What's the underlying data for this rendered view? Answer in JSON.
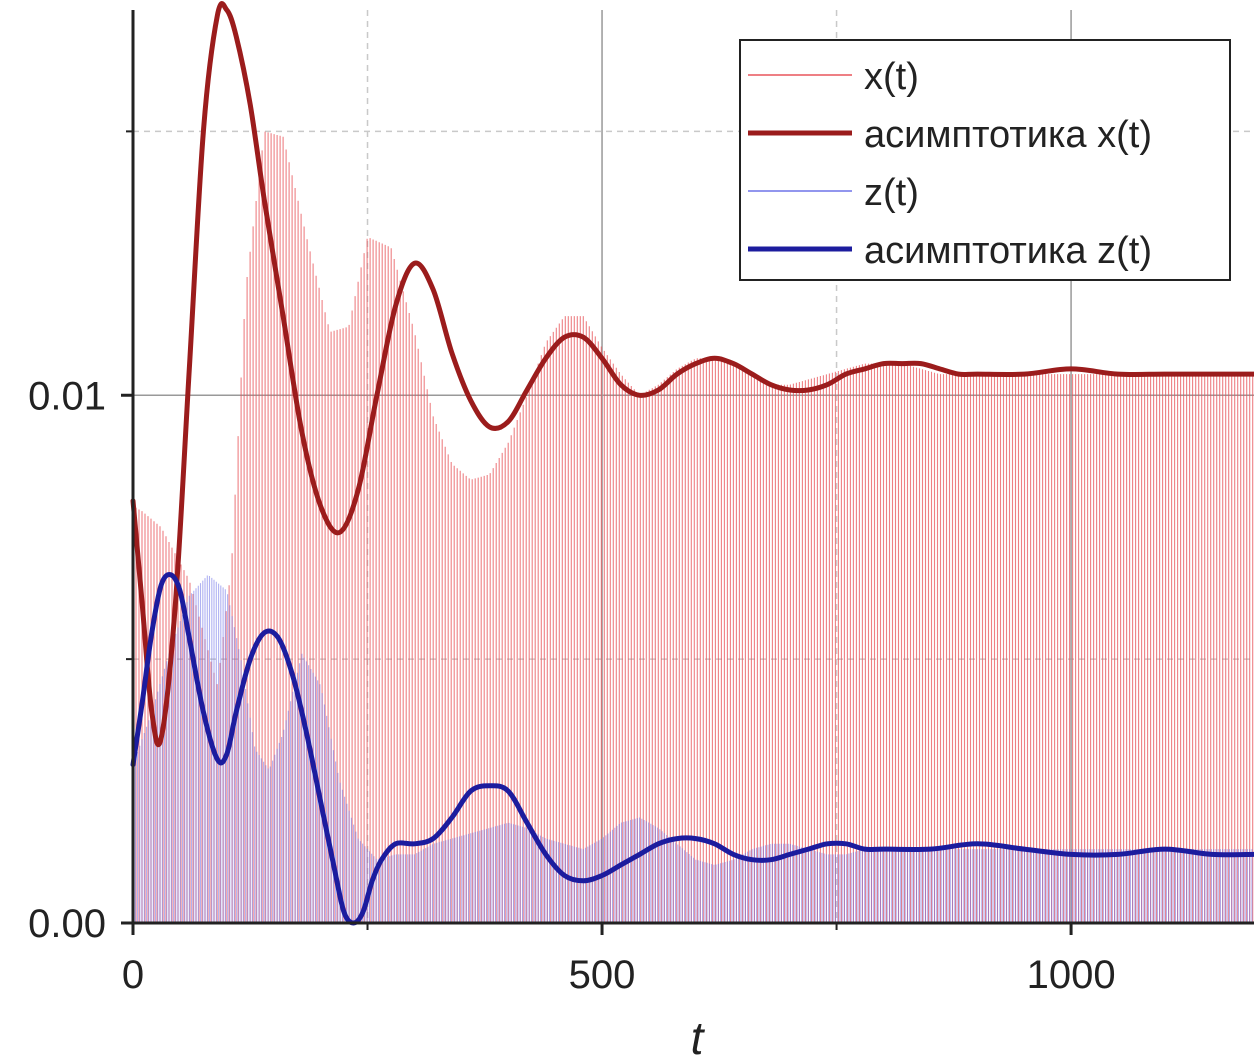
{
  "chart_data": {
    "type": "line",
    "title": "",
    "xlabel": "t",
    "ylabel": "",
    "xlim": [
      0,
      1195
    ],
    "ylim": [
      0,
      0.0173
    ],
    "x_ticks": [
      0,
      500,
      1000
    ],
    "x_tick_labels": [
      "0",
      "500",
      "1000"
    ],
    "y_ticks": [
      0.0,
      0.01
    ],
    "y_tick_labels": [
      "0.00",
      "0.01"
    ],
    "grid": {
      "x_solid": [
        500,
        1000
      ],
      "x_dashed": [
        250,
        750
      ],
      "y_solid": [
        0.01
      ],
      "y_dashed": [
        0.005,
        0.015
      ]
    },
    "legend": {
      "placement": "top-right",
      "entries": [
        {
          "label": "x(t)",
          "color": "#e8555b",
          "style": "thin"
        },
        {
          "label": "асимптотика x(t)",
          "color": "#9b1c1c",
          "style": "thick"
        },
        {
          "label": "z(t)",
          "color": "#6f73e8",
          "style": "thin"
        },
        {
          "label": "асимптотика z(t)",
          "color": "#1c1c9e",
          "style": "thick"
        }
      ]
    },
    "series": [
      {
        "name": "x(t)",
        "kind": "oscillation-envelope",
        "color": "#e8555b",
        "x": [
          0,
          10,
          30,
          60,
          90,
          105,
          120,
          140,
          160,
          185,
          210,
          230,
          250,
          275,
          300,
          320,
          340,
          360,
          380,
          400,
          420,
          440,
          460,
          480,
          500,
          520,
          540,
          560,
          580,
          600,
          620,
          640,
          660,
          680,
          700,
          720,
          740,
          760,
          780,
          800,
          820,
          840,
          860,
          880,
          900,
          950,
          1000,
          1050,
          1100,
          1150,
          1195
        ],
        "upper": [
          0.0079,
          0.0078,
          0.0075,
          0.0065,
          0.0045,
          0.0068,
          0.012,
          0.015,
          0.0149,
          0.013,
          0.0112,
          0.0113,
          0.013,
          0.0128,
          0.0112,
          0.0096,
          0.0087,
          0.0084,
          0.0085,
          0.0091,
          0.01,
          0.011,
          0.0115,
          0.0115,
          0.0109,
          0.0104,
          0.01,
          0.0102,
          0.0105,
          0.0107,
          0.0107,
          0.0106,
          0.0104,
          0.0102,
          0.0102,
          0.0103,
          0.0104,
          0.0105,
          0.0106,
          0.0106,
          0.0106,
          0.0105,
          0.0104,
          0.0104,
          0.0104,
          0.0104,
          0.0104,
          0.0104,
          0.0104,
          0.0104,
          0.0104
        ],
        "lower": [
          0.0,
          0.0,
          0.0,
          0.0,
          0.0,
          0.0,
          0.0,
          0.0,
          0.0,
          0.0,
          0.0,
          0.0,
          0.0,
          0.0,
          0.0,
          0.0,
          0.0,
          0.0,
          0.0,
          0.0,
          0.0,
          0.0,
          0.0,
          0.0,
          0.0,
          0.0,
          0.0,
          0.0,
          0.0,
          0.0,
          0.0,
          0.0,
          0.0,
          0.0,
          0.0,
          0.0,
          0.0,
          0.0,
          0.0,
          0.0,
          0.0,
          0.0,
          0.0,
          0.0,
          0.0,
          0.0,
          0.0,
          0.0,
          0.0,
          0.0,
          0.0
        ]
      },
      {
        "name": "асимптотика x(t)",
        "kind": "line",
        "color": "#9b1c1c",
        "x": [
          0,
          10,
          20,
          30,
          45,
          60,
          75,
          90,
          100,
          110,
          125,
          140,
          160,
          180,
          200,
          220,
          240,
          260,
          280,
          300,
          320,
          340,
          360,
          380,
          400,
          420,
          440,
          460,
          480,
          500,
          520,
          540,
          560,
          580,
          600,
          620,
          640,
          660,
          680,
          700,
          720,
          740,
          760,
          780,
          800,
          820,
          840,
          860,
          880,
          900,
          950,
          1000,
          1050,
          1100,
          1150,
          1195
        ],
        "y": [
          0.008,
          0.006,
          0.004,
          0.0035,
          0.006,
          0.0105,
          0.015,
          0.0172,
          0.0173,
          0.0168,
          0.0155,
          0.0137,
          0.0115,
          0.0093,
          0.0079,
          0.0074,
          0.0082,
          0.01,
          0.0117,
          0.0125,
          0.012,
          0.0108,
          0.0099,
          0.0094,
          0.0095,
          0.0101,
          0.0107,
          0.0111,
          0.0111,
          0.0107,
          0.0102,
          0.01,
          0.0101,
          0.0104,
          0.0106,
          0.0107,
          0.0106,
          0.0104,
          0.0102,
          0.0101,
          0.0101,
          0.0102,
          0.0104,
          0.0105,
          0.0106,
          0.0106,
          0.0106,
          0.0105,
          0.0104,
          0.0104,
          0.0104,
          0.0105,
          0.0104,
          0.0104,
          0.0104,
          0.0104
        ]
      },
      {
        "name": "z(t)",
        "kind": "oscillation-envelope",
        "color": "#6f73e8",
        "x": [
          0,
          20,
          40,
          60,
          80,
          100,
          115,
          130,
          145,
          160,
          180,
          200,
          220,
          240,
          260,
          280,
          300,
          320,
          340,
          360,
          380,
          400,
          420,
          440,
          460,
          480,
          500,
          520,
          540,
          560,
          580,
          600,
          620,
          640,
          660,
          680,
          700,
          720,
          740,
          760,
          780,
          800,
          850,
          900,
          1000,
          1100,
          1195
        ],
        "upper": [
          0.003,
          0.004,
          0.0052,
          0.0062,
          0.0066,
          0.0063,
          0.005,
          0.0033,
          0.0029,
          0.0036,
          0.0051,
          0.0045,
          0.0027,
          0.0016,
          0.0012,
          0.0013,
          0.0013,
          0.0015,
          0.0016,
          0.0017,
          0.0018,
          0.0019,
          0.0018,
          0.0016,
          0.0015,
          0.0014,
          0.0016,
          0.0019,
          0.002,
          0.0018,
          0.0015,
          0.0012,
          0.0011,
          0.0012,
          0.0014,
          0.0015,
          0.0015,
          0.0014,
          0.0013,
          0.0013,
          0.0014,
          0.0014,
          0.0014,
          0.0014,
          0.0014,
          0.0014,
          0.0014
        ],
        "lower": [
          0.0,
          0.0,
          0.0,
          0.0,
          0.0,
          0.0,
          0.0,
          0.0,
          0.0,
          0.0,
          0.0,
          0.0,
          0.0,
          0.0,
          0.0,
          0.0,
          0.0,
          0.0,
          0.0,
          0.0,
          0.0,
          0.0,
          0.0,
          0.0,
          0.0,
          0.0,
          0.0,
          0.0,
          0.0,
          0.0,
          0.0,
          0.0,
          0.0,
          0.0,
          0.0,
          0.0,
          0.0,
          0.0,
          0.0,
          0.0,
          0.0,
          0.0,
          0.0,
          0.0,
          0.0,
          0.0,
          0.0
        ]
      },
      {
        "name": "асимптотика z(t)",
        "kind": "line",
        "color": "#1c1c9e",
        "x": [
          0,
          10,
          20,
          30,
          40,
          50,
          60,
          75,
          90,
          100,
          110,
          125,
          140,
          155,
          170,
          185,
          200,
          215,
          225,
          235,
          245,
          255,
          265,
          280,
          300,
          320,
          340,
          360,
          380,
          400,
          420,
          440,
          460,
          480,
          500,
          520,
          540,
          560,
          580,
          600,
          620,
          640,
          660,
          680,
          700,
          720,
          740,
          760,
          780,
          800,
          850,
          900,
          950,
          1000,
          1050,
          1100,
          1150,
          1195
        ],
        "y": [
          0.003,
          0.0042,
          0.0055,
          0.0064,
          0.0066,
          0.0063,
          0.0054,
          0.004,
          0.0031,
          0.0032,
          0.004,
          0.005,
          0.0055,
          0.0054,
          0.0047,
          0.0036,
          0.0023,
          0.001,
          0.0002,
          0.0,
          0.0002,
          0.0008,
          0.0012,
          0.0015,
          0.0015,
          0.0016,
          0.002,
          0.0025,
          0.0026,
          0.0025,
          0.0019,
          0.0013,
          0.0009,
          0.0008,
          0.0009,
          0.0011,
          0.0013,
          0.0015,
          0.0016,
          0.0016,
          0.0015,
          0.0013,
          0.0012,
          0.0012,
          0.0013,
          0.0014,
          0.0015,
          0.0015,
          0.0014,
          0.0014,
          0.0014,
          0.0015,
          0.0014,
          0.0013,
          0.0013,
          0.0014,
          0.0013,
          0.0013
        ]
      }
    ]
  }
}
